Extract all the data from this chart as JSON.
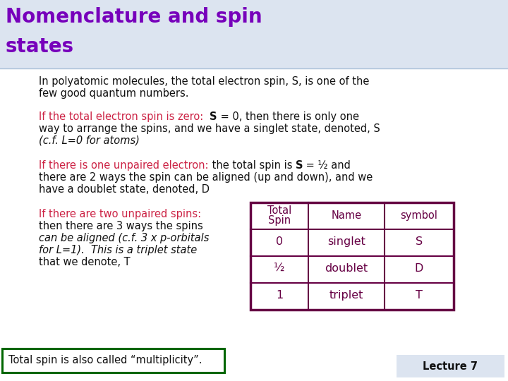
{
  "title_line1": "Nomenclature and spin",
  "title_line2": "states",
  "title_color": "#7700bb",
  "title_bg": "#dce4f0",
  "body_bg": "#ffffff",
  "text_color": "#111111",
  "red_color": "#cc2244",
  "table_color": "#660044",
  "footer_border": "#006600",
  "footer_bg": "#ffffff",
  "lecture_bg": "#dce4f0",
  "lecture_text": "Lecture 7",
  "footer_text": "Total spin is also called “multiplicity”.",
  "table_rows": [
    [
      "0",
      "singlet",
      "S"
    ],
    [
      "½",
      "doublet",
      "D"
    ],
    [
      "1",
      "triplet",
      "T"
    ]
  ]
}
